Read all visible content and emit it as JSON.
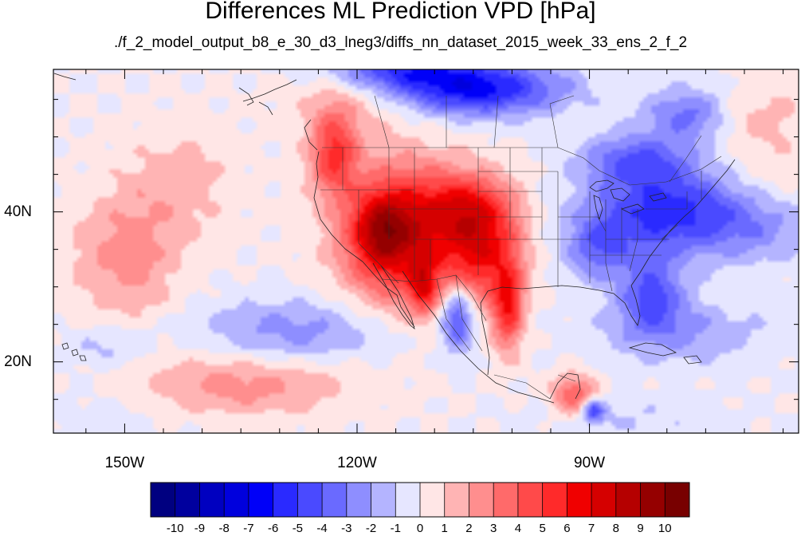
{
  "title": "Differences ML Prediction VPD [hPa]",
  "subtitle": "./f_2_model_output_b8_e_30_d3_lneg3/diffs_nn_dataset_2015_week_33_ens_2_f_2",
  "map": {
    "lon_range": [
      -159.2,
      -63
    ],
    "lat_range": [
      10.5,
      59
    ],
    "lat_ticks": [
      {
        "value": 40,
        "label": "40N"
      },
      {
        "value": 20,
        "label": "20N"
      }
    ],
    "lon_ticks": [
      {
        "value": -150,
        "label": "150W"
      },
      {
        "value": -120,
        "label": "120W"
      },
      {
        "value": -90,
        "label": "90W"
      }
    ]
  },
  "colorbar": {
    "labels": [
      "-10",
      "-9",
      "-8",
      "-7",
      "-6",
      "-5",
      "-4",
      "-3",
      "-2",
      "-1",
      "0",
      "1",
      "2",
      "3",
      "4",
      "5",
      "6",
      "7",
      "8",
      "9",
      "10"
    ],
    "colors": [
      "#000080",
      "#00009e",
      "#0000c0",
      "#0000dd",
      "#0000f8",
      "#2a2aff",
      "#4a4aff",
      "#6a6aff",
      "#8e8eff",
      "#b4b4ff",
      "#e6e6ff",
      "#ffe6e6",
      "#ffb4b4",
      "#ff8e8e",
      "#ff6a6a",
      "#ff4a4a",
      "#ff2a2a",
      "#f00000",
      "#d50000",
      "#b50000",
      "#950000",
      "#780000"
    ]
  },
  "chart_data": {
    "type": "heatmap",
    "title": "Differences ML Prediction VPD [hPa]",
    "subtitle": "./f_2_model_output_b8_e_30_d3_lneg3/diffs_nn_dataset_2015_week_33_ens_2_f_2",
    "colorbar_range": [
      -10,
      10
    ],
    "features": [
      {
        "kind": "blob",
        "lon": -114,
        "lat": 37,
        "sx": 5.5,
        "sy": 6.5,
        "v": 7
      },
      {
        "kind": "blob",
        "lon": -117,
        "lat": 37.5,
        "sx": 2.5,
        "sy": 3.5,
        "v": 4
      },
      {
        "kind": "blob",
        "lon": -123,
        "lat": 48,
        "sx": 2.2,
        "sy": 4,
        "v": 5
      },
      {
        "kind": "blob",
        "lon": -103.5,
        "lat": 35,
        "sx": 3.5,
        "sy": 5,
        "v": 5.5
      },
      {
        "kind": "blob",
        "lon": -106,
        "lat": 41,
        "sx": 4,
        "sy": 3,
        "v": 3.5
      },
      {
        "kind": "blob",
        "lon": -100.5,
        "lat": 27,
        "sx": 1.4,
        "sy": 4,
        "v": 5
      },
      {
        "kind": "blob",
        "lon": -111.5,
        "lat": 30,
        "sx": 1.2,
        "sy": 2.5,
        "v": 4
      },
      {
        "kind": "blob",
        "lon": -107,
        "lat": 26,
        "sx": 1.5,
        "sy": 3,
        "v": -5
      },
      {
        "kind": "blob",
        "lon": -120,
        "lat": 55,
        "sx": 6,
        "sy": 3,
        "v": 1.5
      },
      {
        "kind": "blob",
        "lon": -105,
        "lat": 56.5,
        "sx": 8,
        "sy": 2.5,
        "v": -6.5
      },
      {
        "kind": "blob",
        "lon": -115,
        "lat": 59,
        "sx": 6,
        "sy": 1.8,
        "v": -4
      },
      {
        "kind": "blob",
        "lon": -80,
        "lat": 40,
        "sx": 7,
        "sy": 4,
        "v": -5.5
      },
      {
        "kind": "blob",
        "lon": -82,
        "lat": 29,
        "sx": 3,
        "sy": 3.5,
        "v": -4
      },
      {
        "kind": "blob",
        "lon": -89,
        "lat": 35,
        "sx": 3,
        "sy": 3,
        "v": -3
      },
      {
        "kind": "blob",
        "lon": -84,
        "lat": 47,
        "sx": 5,
        "sy": 2.5,
        "v": -3.5
      },
      {
        "kind": "blob",
        "lon": -92,
        "lat": 15.5,
        "sx": 2,
        "sy": 2,
        "v": 4
      },
      {
        "kind": "blob",
        "lon": -89.5,
        "lat": 13.5,
        "sx": 1,
        "sy": 1,
        "v": -5
      },
      {
        "kind": "blob",
        "lon": -135,
        "lat": 17,
        "sx": 10,
        "sy": 3,
        "v": 2.5
      },
      {
        "kind": "blob",
        "lon": -150,
        "lat": 34,
        "sx": 5,
        "sy": 6,
        "v": 2.5
      },
      {
        "kind": "blob",
        "lon": -143,
        "lat": 44,
        "sx": 5,
        "sy": 5,
        "v": 1.5
      },
      {
        "kind": "blob",
        "lon": -128,
        "lat": 24,
        "sx": 9,
        "sy": 3,
        "v": -2.5
      },
      {
        "kind": "blob",
        "lon": -152,
        "lat": 22,
        "sx": 4,
        "sy": 2,
        "v": -1.5
      },
      {
        "kind": "blob",
        "lon": -78,
        "lat": 24,
        "sx": 8,
        "sy": 3,
        "v": -2
      },
      {
        "kind": "blob",
        "lon": -68,
        "lat": 38,
        "sx": 5,
        "sy": 3.5,
        "v": -2
      },
      {
        "kind": "blob",
        "lon": -67,
        "lat": 45,
        "sx": 4,
        "sy": 4,
        "v": 1
      },
      {
        "kind": "blob",
        "lon": -69,
        "lat": 53,
        "sx": 5,
        "sy": 3,
        "v": 1.5
      },
      {
        "kind": "blob",
        "lon": -77,
        "lat": 53,
        "sx": 4,
        "sy": 2.5,
        "v": -3.5
      },
      {
        "kind": "blob",
        "lon": -85,
        "lat": 12.5,
        "sx": 8,
        "sy": 2,
        "v": -1
      },
      {
        "kind": "blob",
        "lon": -152,
        "lat": 13,
        "sx": 7,
        "sy": 3,
        "v": -0.6
      }
    ]
  }
}
